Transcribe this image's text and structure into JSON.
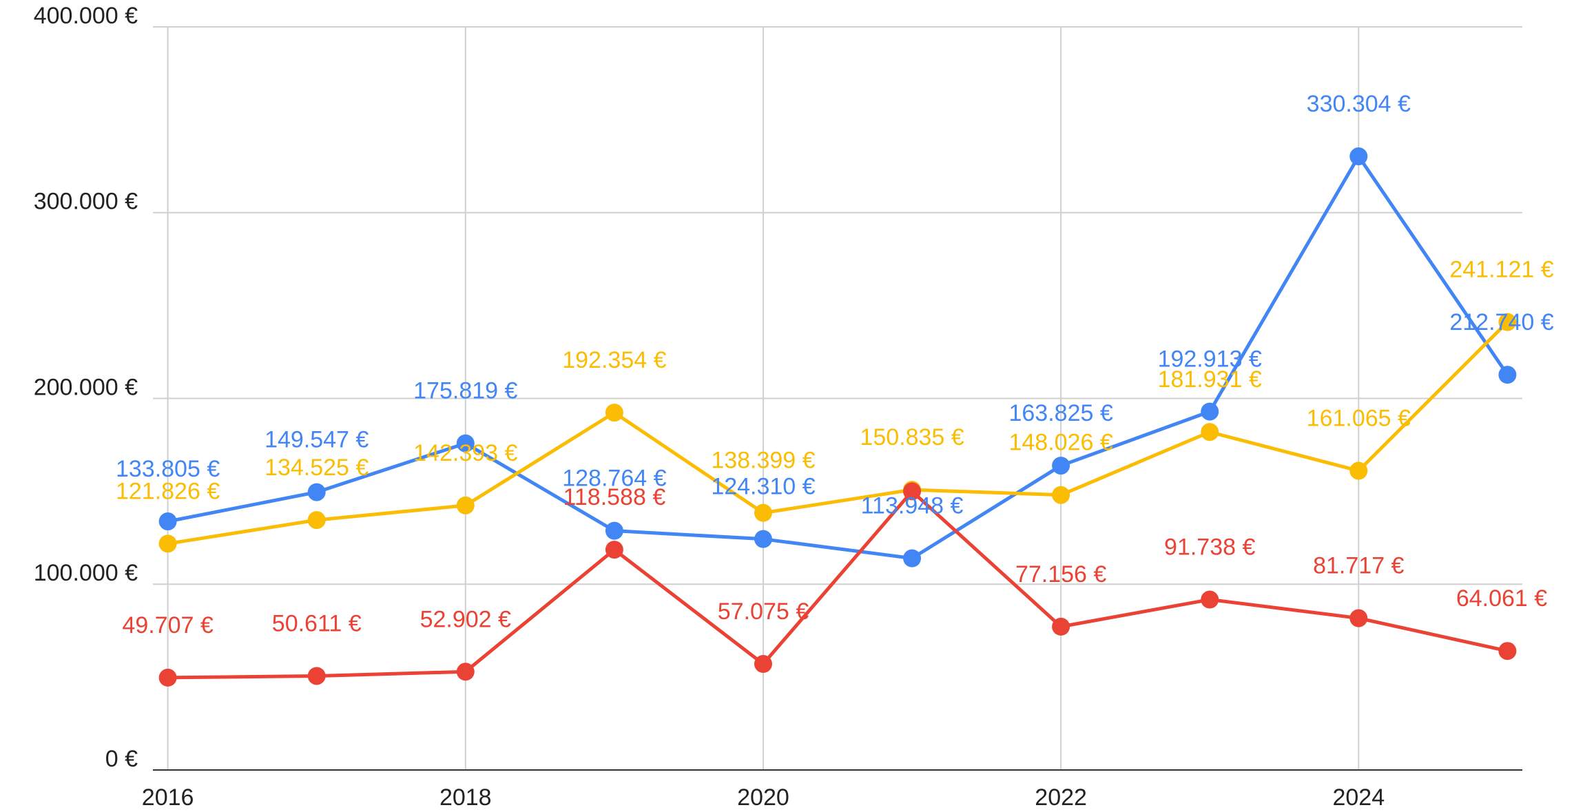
{
  "chart_data": {
    "type": "line",
    "x": [
      2016,
      2017,
      2018,
      2019,
      2020,
      2021,
      2022,
      2023,
      2024,
      2025
    ],
    "xlim": [
      2015.9,
      2025.1
    ],
    "xticks": [
      2016,
      2018,
      2020,
      2022,
      2024
    ],
    "ylim": [
      0,
      400000
    ],
    "yticks": [
      {
        "value": 0,
        "label": "0 €"
      },
      {
        "value": 100000,
        "label": "100.000 €"
      },
      {
        "value": 200000,
        "label": "200.000 €"
      },
      {
        "value": 300000,
        "label": "300.000 €"
      },
      {
        "value": 400000,
        "label": "400.000 €"
      }
    ],
    "grid": true,
    "series": [
      {
        "color": "#4285f4",
        "values": [
          133805,
          149547,
          175819,
          128764,
          124310,
          113948,
          163825,
          192913,
          330304,
          212740
        ],
        "value_labels": [
          "133.805 €",
          "149.547 €",
          "175.819 €",
          "128.764 €",
          "124.310 €",
          "113.948 €",
          "163.825 €",
          "192.913 €",
          "330.304 €",
          "212.740 €"
        ]
      },
      {
        "color": "#fbbc04",
        "values": [
          121826,
          134525,
          142393,
          192354,
          138399,
          150835,
          148026,
          181931,
          161065,
          241121
        ],
        "value_labels": [
          "121.826 €",
          "134.525 €",
          "142.393 €",
          "192.354 €",
          "138.399 €",
          "150.835 €",
          "148.026 €",
          "181.931 €",
          "161.065 €",
          "241.121 €"
        ]
      },
      {
        "color": "#ea4335",
        "values": [
          49707,
          50611,
          52902,
          118588,
          57075,
          150000,
          77156,
          91738,
          81717,
          64061
        ],
        "value_labels": [
          "49.707 €",
          "50.611 €",
          "52.902 €",
          "118.588 €",
          "57.075 €",
          null,
          "77.156 €",
          "91.738 €",
          "81.717 €",
          "64.061 €"
        ]
      }
    ]
  }
}
